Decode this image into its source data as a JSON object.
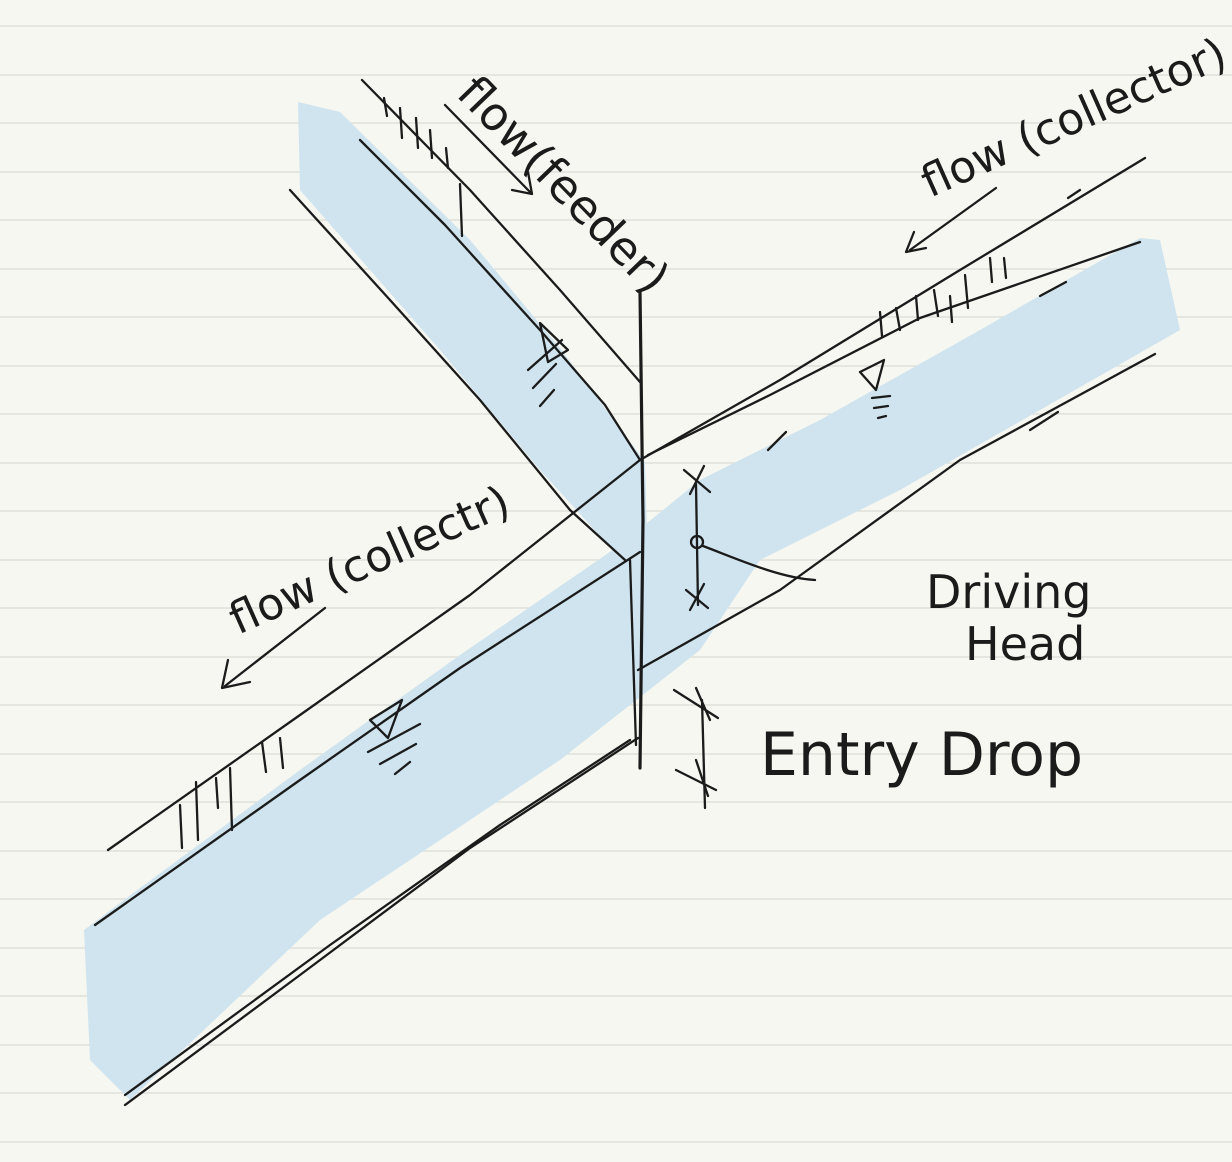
{
  "labels": {
    "flow_feeder": "flow(feeder)",
    "flow_collector_right": "flow (collector)",
    "flow_collector_left": "flow (collectr)",
    "driving_head_line1": "Driving",
    "driving_head_line2": "Head",
    "entry_drop": "Entry Drop"
  },
  "colors": {
    "paper": "#f7f7f2",
    "ruled_line": "#dcdcd6",
    "water": "#cfe4ee",
    "ink": "#1b1b1b"
  },
  "icons": {
    "water_surface": "water-surface-triangle-icon",
    "arrow": "flow-arrow-icon",
    "dimension_tick": "dimension-tick-icon"
  }
}
